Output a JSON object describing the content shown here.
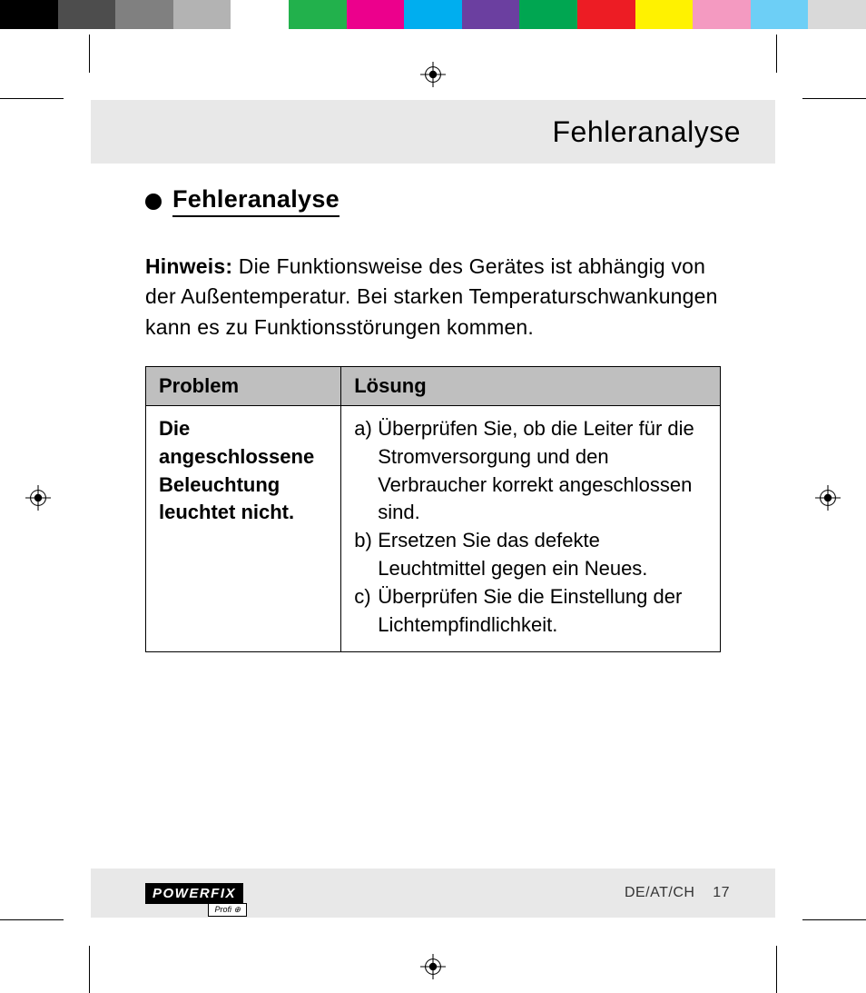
{
  "color_bar": [
    "#000000",
    "#4d4d4d",
    "#808080",
    "#b3b3b3",
    "#ffffff",
    "#22b14c",
    "#ec008c",
    "#00aeef",
    "#6b3fa0",
    "#00a651",
    "#ed1c24",
    "#fff200",
    "#f49ac1",
    "#6dcff6",
    "#d9d9d9"
  ],
  "registration_color": "#000000",
  "header": {
    "title": "Fehleranalyse"
  },
  "section": {
    "title": "Fehleranalyse",
    "note_label": "Hinweis:",
    "note_text": "Die Funktionsweise des Gerätes ist abhängig von der Außentemperatur. Bei starken Temperaturschwankungen kann es zu Funktionsstörungen kommen."
  },
  "table": {
    "head_problem": "Problem",
    "head_solution": "Lösung",
    "row": {
      "problem": "Die angeschlossene Beleuchtung leuchtet nicht.",
      "solutions": [
        {
          "label": "a)",
          "text": "Überprüfen Sie, ob die Leiter für die Stromversorgung und den Verbraucher korrekt angeschlossen sind."
        },
        {
          "label": "b)",
          "text": "Ersetzen Sie das defekte Leuchtmittel gegen ein Neues."
        },
        {
          "label": "c)",
          "text": "Überprüfen Sie die Einstellung der Lichtempfindlichkeit."
        }
      ]
    },
    "header_bg": "#bfbfbf",
    "border_color": "#000000"
  },
  "footer": {
    "logo_main": "POWERFIX",
    "logo_sub": "Profi ⊕",
    "locale": "DE/AT/CH",
    "page_no": "17"
  }
}
